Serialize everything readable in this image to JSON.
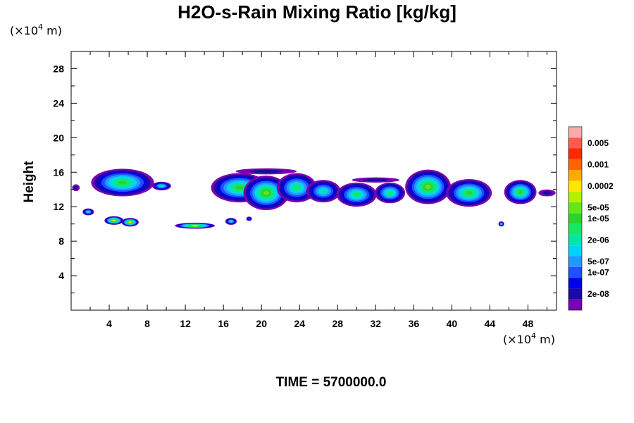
{
  "chart_data": {
    "type": "heatmap",
    "title": "H2O-s-Rain Mixing Ratio [kg/kg]",
    "ylabel": "Height",
    "x_scale_label": "(×10",
    "x_scale_exp": "4",
    "x_scale_unit": " m)",
    "y_scale_label": "(×10",
    "y_scale_exp": "4",
    "y_scale_unit": " m)",
    "xlim": [
      0,
      51
    ],
    "ylim": [
      0,
      30
    ],
    "x_ticks": [
      4,
      8,
      12,
      16,
      20,
      24,
      28,
      32,
      36,
      40,
      44,
      48
    ],
    "y_ticks": [
      4,
      8,
      12,
      16,
      20,
      24,
      28
    ],
    "footer": "TIME = 5700000.0",
    "colorbar": {
      "colors": [
        "#7a00b4",
        "#1a0aa0",
        "#0000e6",
        "#1e50ff",
        "#2896ff",
        "#00d2ff",
        "#00e6aa",
        "#19e664",
        "#2dd22d",
        "#64e61e",
        "#b4f000",
        "#ffe600",
        "#ffaa00",
        "#ff6400",
        "#ff2800",
        "#ff5a4b",
        "#ffaaaa"
      ],
      "labels": [
        {
          "level": 1,
          "text": "2e-08"
        },
        {
          "level": 3,
          "text": "1e-07"
        },
        {
          "level": 4,
          "text": "5e-07"
        },
        {
          "level": 6,
          "text": "2e-06"
        },
        {
          "level": 8,
          "text": "1e-05"
        },
        {
          "level": 9,
          "text": "5e-05"
        },
        {
          "level": 11,
          "text": "0.0002"
        },
        {
          "level": 13,
          "text": "0.001"
        },
        {
          "level": 15,
          "text": "0.005"
        }
      ]
    },
    "regions": [
      {
        "cx": 5.4,
        "cy": 14.8,
        "rx": 3.3,
        "ry": 1.6,
        "peak": 8
      },
      {
        "cx": 9.5,
        "cy": 14.4,
        "rx": 1.0,
        "ry": 0.5,
        "peak": 6
      },
      {
        "cx": 0.5,
        "cy": 14.2,
        "rx": 0.4,
        "ry": 0.4,
        "peak": 1
      },
      {
        "cx": 1.8,
        "cy": 11.4,
        "rx": 0.6,
        "ry": 0.4,
        "peak": 6
      },
      {
        "cx": 4.5,
        "cy": 10.4,
        "rx": 1.0,
        "ry": 0.5,
        "peak": 11
      },
      {
        "cx": 6.2,
        "cy": 10.2,
        "rx": 0.9,
        "ry": 0.5,
        "peak": 11
      },
      {
        "cx": 13.0,
        "cy": 9.8,
        "rx": 2.1,
        "ry": 0.35,
        "peak": 11
      },
      {
        "cx": 16.8,
        "cy": 10.3,
        "rx": 0.6,
        "ry": 0.4,
        "peak": 6
      },
      {
        "cx": 18.7,
        "cy": 10.6,
        "rx": 0.3,
        "ry": 0.25,
        "peak": 3
      },
      {
        "cx": 17.7,
        "cy": 14.2,
        "rx": 3.0,
        "ry": 1.7,
        "peak": 8
      },
      {
        "cx": 20.5,
        "cy": 13.6,
        "rx": 2.4,
        "ry": 2.0,
        "peak": 9
      },
      {
        "cx": 23.7,
        "cy": 14.2,
        "rx": 2.1,
        "ry": 1.7,
        "peak": 7
      },
      {
        "cx": 26.5,
        "cy": 13.8,
        "rx": 1.8,
        "ry": 1.3,
        "peak": 6
      },
      {
        "cx": 30.0,
        "cy": 13.4,
        "rx": 2.1,
        "ry": 1.4,
        "peak": 7
      },
      {
        "cx": 33.5,
        "cy": 13.6,
        "rx": 1.6,
        "ry": 1.2,
        "peak": 7
      },
      {
        "cx": 37.5,
        "cy": 14.3,
        "rx": 2.4,
        "ry": 2.0,
        "peak": 9
      },
      {
        "cx": 41.8,
        "cy": 13.6,
        "rx": 2.4,
        "ry": 1.6,
        "peak": 8
      },
      {
        "cx": 47.2,
        "cy": 13.7,
        "rx": 1.7,
        "ry": 1.4,
        "peak": 8
      },
      {
        "cx": 45.2,
        "cy": 10.0,
        "rx": 0.3,
        "ry": 0.3,
        "peak": 6
      },
      {
        "cx": 50.0,
        "cy": 13.6,
        "rx": 0.9,
        "ry": 0.4,
        "peak": 1
      },
      {
        "cx": 20.5,
        "cy": 16.1,
        "rx": 3.2,
        "ry": 0.35,
        "peak": 1
      },
      {
        "cx": 32.0,
        "cy": 15.1,
        "rx": 2.5,
        "ry": 0.3,
        "peak": 1
      }
    ]
  }
}
